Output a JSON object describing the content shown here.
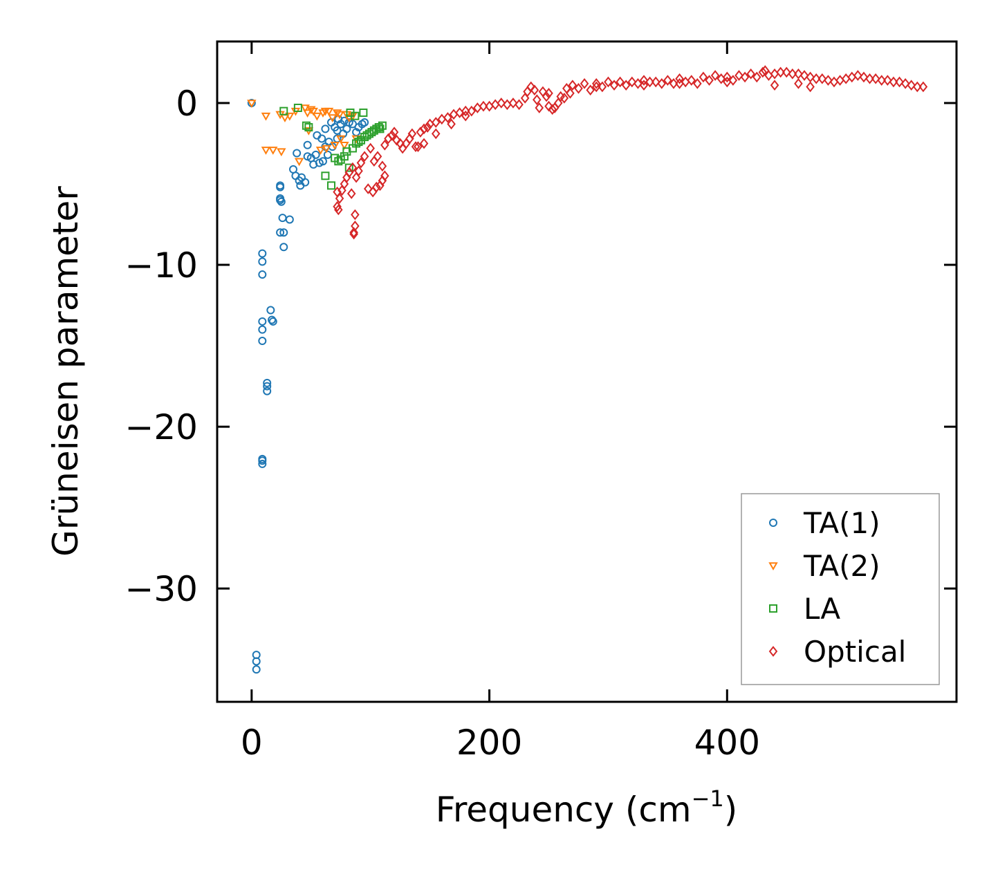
{
  "chart_data": {
    "type": "scatter",
    "title": "",
    "xlabel": "Frequency (cm",
    "xlabel_sup": "−1",
    "xlabel_close": ")",
    "ylabel": "Grüneisen parameter",
    "xlim": [
      -29,
      593
    ],
    "ylim": [
      -37.0,
      3.8
    ],
    "xticks": [
      0,
      200,
      400
    ],
    "xtick_labels": [
      "0",
      "200",
      "400"
    ],
    "yticks": [
      0,
      -10,
      -20,
      -30
    ],
    "ytick_labels": [
      "0",
      "−10",
      "−20",
      "−30"
    ],
    "grid": false,
    "legend_position": "lower-right",
    "series": [
      {
        "name": "TA(1)",
        "marker": "circle",
        "color": "#1f77b4",
        "points": [
          [
            0,
            0
          ],
          [
            4,
            -34.1
          ],
          [
            4,
            -34.5
          ],
          [
            4,
            -35.0
          ],
          [
            9,
            -22.0
          ],
          [
            9,
            -22.1
          ],
          [
            9,
            -22.3
          ],
          [
            9,
            -9.3
          ],
          [
            9,
            -9.8
          ],
          [
            9,
            -10.6
          ],
          [
            9,
            -13.5
          ],
          [
            9,
            -14.0
          ],
          [
            9,
            -14.7
          ],
          [
            13,
            -17.3
          ],
          [
            13,
            -17.5
          ],
          [
            13,
            -17.8
          ],
          [
            16,
            -12.8
          ],
          [
            17,
            -13.4
          ],
          [
            18,
            -13.5
          ],
          [
            24,
            -5.1
          ],
          [
            24,
            -5.2
          ],
          [
            24,
            -5.9
          ],
          [
            24,
            -6.0
          ],
          [
            25,
            -6.1
          ],
          [
            24,
            -8.0
          ],
          [
            26,
            -7.1
          ],
          [
            27,
            -8.0
          ],
          [
            27,
            -8.9
          ],
          [
            32,
            -7.2
          ],
          [
            35,
            -4.1
          ],
          [
            37,
            -4.5
          ],
          [
            38,
            -3.1
          ],
          [
            40,
            -4.8
          ],
          [
            41,
            -5.1
          ],
          [
            42,
            -4.6
          ],
          [
            45,
            -4.9
          ],
          [
            47,
            -2.6
          ],
          [
            47,
            -3.3
          ],
          [
            50,
            -3.4
          ],
          [
            52,
            -3.8
          ],
          [
            54,
            -3.2
          ],
          [
            55,
            -2.0
          ],
          [
            57,
            -3.7
          ],
          [
            59,
            -2.2
          ],
          [
            60,
            -3.6
          ],
          [
            62,
            -2.7
          ],
          [
            62,
            -1.6
          ],
          [
            64,
            -3.2
          ],
          [
            65,
            -2.4
          ],
          [
            67,
            -1.2
          ],
          [
            68,
            -2.7
          ],
          [
            70,
            -1.5
          ],
          [
            72,
            -1.7
          ],
          [
            72,
            -2.2
          ],
          [
            73,
            -1.0
          ],
          [
            75,
            -1.3
          ],
          [
            77,
            -1.9
          ],
          [
            78,
            -1.1
          ],
          [
            80,
            -1.6
          ],
          [
            82,
            -1.2
          ],
          [
            85,
            -1.3
          ],
          [
            88,
            -1.8
          ],
          [
            90,
            -1.5
          ],
          [
            93,
            -1.3
          ],
          [
            95,
            -1.2
          ]
        ]
      },
      {
        "name": "TA(2)",
        "marker": "triangle-down",
        "color": "#ff7f0e",
        "points": [
          [
            0,
            0
          ],
          [
            12,
            -0.8
          ],
          [
            12,
            -2.9
          ],
          [
            18,
            -2.9
          ],
          [
            24,
            -0.7
          ],
          [
            25,
            -3.0
          ],
          [
            28,
            -0.9
          ],
          [
            32,
            -0.8
          ],
          [
            37,
            -0.5
          ],
          [
            40,
            -3.6
          ],
          [
            45,
            -0.3
          ],
          [
            47,
            -0.6
          ],
          [
            48,
            -1.7
          ],
          [
            50,
            -0.4
          ],
          [
            52,
            -0.5
          ],
          [
            55,
            -0.8
          ],
          [
            58,
            -2.9
          ],
          [
            60,
            -0.6
          ],
          [
            62,
            -0.5
          ],
          [
            63,
            -2.8
          ],
          [
            65,
            -0.5
          ],
          [
            68,
            -0.9
          ],
          [
            70,
            -2.6
          ],
          [
            72,
            -0.6
          ],
          [
            74,
            -0.7
          ],
          [
            75,
            -2.2
          ],
          [
            78,
            -2.6
          ],
          [
            80,
            -0.7
          ],
          [
            82,
            -0.9
          ],
          [
            85,
            -0.8
          ],
          [
            88,
            -2.2
          ]
        ]
      },
      {
        "name": "LA",
        "marker": "square",
        "color": "#2ca02c",
        "points": [
          [
            27,
            -0.5
          ],
          [
            39,
            -0.3
          ],
          [
            46,
            -1.4
          ],
          [
            48,
            -1.5
          ],
          [
            62,
            -4.5
          ],
          [
            67,
            -5.1
          ],
          [
            70,
            -3.4
          ],
          [
            73,
            -3.6
          ],
          [
            75,
            -3.5
          ],
          [
            78,
            -3.3
          ],
          [
            80,
            -3.0
          ],
          [
            82,
            -4.0
          ],
          [
            83,
            -0.6
          ],
          [
            85,
            -2.8
          ],
          [
            87,
            -0.8
          ],
          [
            88,
            -2.5
          ],
          [
            90,
            -2.4
          ],
          [
            92,
            -2.3
          ],
          [
            94,
            -0.6
          ],
          [
            95,
            -2.1
          ],
          [
            97,
            -2.0
          ],
          [
            99,
            -1.9
          ],
          [
            101,
            -1.8
          ],
          [
            103,
            -1.7
          ],
          [
            105,
            -1.6
          ],
          [
            107,
            -1.5
          ],
          [
            108,
            -1.6
          ],
          [
            110,
            -1.4
          ]
        ]
      },
      {
        "name": "Optical",
        "marker": "diamond",
        "color": "#d62728",
        "points": [
          [
            72,
            -6.4
          ],
          [
            73,
            -6.6
          ],
          [
            72,
            -5.5
          ],
          [
            74,
            -5.9
          ],
          [
            76,
            -5.4
          ],
          [
            78,
            -5.0
          ],
          [
            80,
            -4.6
          ],
          [
            82,
            -4.3
          ],
          [
            84,
            -5.6
          ],
          [
            85,
            -4.0
          ],
          [
            86,
            -8.0
          ],
          [
            86,
            -8.1
          ],
          [
            87,
            -6.9
          ],
          [
            87,
            -7.6
          ],
          [
            88,
            -4.6
          ],
          [
            90,
            -4.2
          ],
          [
            92,
            -3.7
          ],
          [
            95,
            -3.3
          ],
          [
            98,
            -5.3
          ],
          [
            100,
            -2.8
          ],
          [
            102,
            -5.5
          ],
          [
            103,
            -3.6
          ],
          [
            105,
            -5.2
          ],
          [
            106,
            -3.3
          ],
          [
            108,
            -5.1
          ],
          [
            110,
            -4.8
          ],
          [
            112,
            -4.5
          ],
          [
            110,
            -3.9
          ],
          [
            112,
            -2.6
          ],
          [
            115,
            -2.2
          ],
          [
            118,
            -2.0
          ],
          [
            120,
            -1.8
          ],
          [
            122,
            -2.3
          ],
          [
            125,
            -2.5
          ],
          [
            127,
            -2.8
          ],
          [
            130,
            -2.5
          ],
          [
            133,
            -2.2
          ],
          [
            135,
            -1.9
          ],
          [
            138,
            -2.7
          ],
          [
            140,
            -2.7
          ],
          [
            142,
            -1.8
          ],
          [
            145,
            -1.6
          ],
          [
            148,
            -1.5
          ],
          [
            150,
            -1.3
          ],
          [
            155,
            -1.2
          ],
          [
            160,
            -1.0
          ],
          [
            165,
            -0.9
          ],
          [
            170,
            -0.7
          ],
          [
            175,
            -0.6
          ],
          [
            180,
            -0.5
          ],
          [
            185,
            -0.5
          ],
          [
            190,
            -0.3
          ],
          [
            195,
            -0.2
          ],
          [
            200,
            -0.2
          ],
          [
            205,
            -0.1
          ],
          [
            210,
            0.0
          ],
          [
            215,
            -0.1
          ],
          [
            220,
            0.0
          ],
          [
            225,
            -0.1
          ],
          [
            230,
            0.3
          ],
          [
            232,
            0.7
          ],
          [
            235,
            1.0
          ],
          [
            238,
            0.8
          ],
          [
            240,
            0.2
          ],
          [
            242,
            -0.3
          ],
          [
            245,
            0.7
          ],
          [
            248,
            0.4
          ],
          [
            250,
            -0.2
          ],
          [
            253,
            -0.4
          ],
          [
            255,
            -0.3
          ],
          [
            258,
            0.0
          ],
          [
            260,
            0.4
          ],
          [
            263,
            0.3
          ],
          [
            265,
            0.9
          ],
          [
            268,
            0.6
          ],
          [
            270,
            1.1
          ],
          [
            275,
            0.9
          ],
          [
            280,
            1.2
          ],
          [
            285,
            0.8
          ],
          [
            290,
            1.2
          ],
          [
            295,
            1.0
          ],
          [
            300,
            1.3
          ],
          [
            305,
            1.1
          ],
          [
            310,
            1.3
          ],
          [
            315,
            1.1
          ],
          [
            320,
            1.3
          ],
          [
            325,
            1.2
          ],
          [
            330,
            1.4
          ],
          [
            335,
            1.3
          ],
          [
            340,
            1.3
          ],
          [
            345,
            1.2
          ],
          [
            350,
            1.4
          ],
          [
            355,
            1.2
          ],
          [
            360,
            1.5
          ],
          [
            365,
            1.3
          ],
          [
            370,
            1.4
          ],
          [
            375,
            1.2
          ],
          [
            380,
            1.6
          ],
          [
            385,
            1.4
          ],
          [
            390,
            1.7
          ],
          [
            395,
            1.5
          ],
          [
            400,
            1.6
          ],
          [
            405,
            1.4
          ],
          [
            410,
            1.7
          ],
          [
            415,
            1.6
          ],
          [
            420,
            1.8
          ],
          [
            425,
            1.6
          ],
          [
            430,
            1.9
          ],
          [
            432,
            2.0
          ],
          [
            435,
            1.7
          ],
          [
            440,
            1.8
          ],
          [
            445,
            1.9
          ],
          [
            450,
            1.9
          ],
          [
            455,
            1.8
          ],
          [
            460,
            1.8
          ],
          [
            465,
            1.7
          ],
          [
            470,
            1.6
          ],
          [
            475,
            1.5
          ],
          [
            480,
            1.5
          ],
          [
            485,
            1.4
          ],
          [
            490,
            1.3
          ],
          [
            495,
            1.4
          ],
          [
            500,
            1.5
          ],
          [
            505,
            1.6
          ],
          [
            510,
            1.7
          ],
          [
            515,
            1.6
          ],
          [
            520,
            1.5
          ],
          [
            525,
            1.5
          ],
          [
            530,
            1.4
          ],
          [
            535,
            1.4
          ],
          [
            540,
            1.3
          ],
          [
            545,
            1.3
          ],
          [
            550,
            1.2
          ],
          [
            555,
            1.1
          ],
          [
            560,
            1.0
          ],
          [
            565,
            1.0
          ],
          [
            145,
            -2.5
          ],
          [
            155,
            -1.9
          ],
          [
            168,
            -1.3
          ],
          [
            180,
            -0.8
          ],
          [
            250,
            0.6
          ],
          [
            290,
            1.0
          ],
          [
            330,
            1.1
          ],
          [
            360,
            1.2
          ],
          [
            400,
            1.3
          ],
          [
            440,
            1.1
          ],
          [
            460,
            1.2
          ],
          [
            470,
            1.0
          ]
        ]
      }
    ]
  }
}
